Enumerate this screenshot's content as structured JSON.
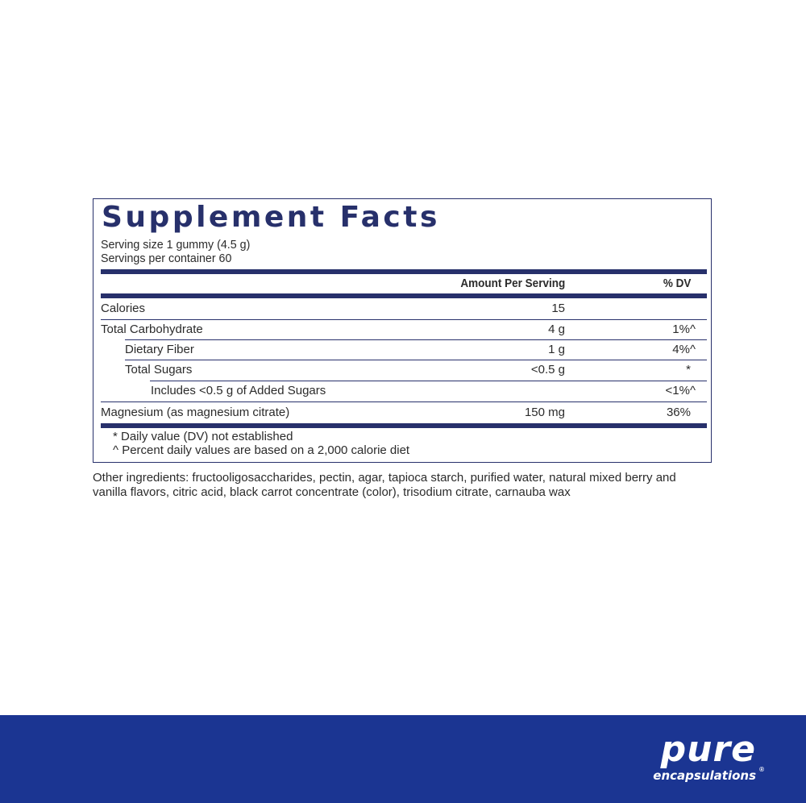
{
  "title": "Supplement Facts",
  "serving_size": "Serving size  1 gummy (4.5 g)",
  "servings_per_container": "Servings per container  60",
  "header": {
    "amount": "Amount Per Serving",
    "dv": "% DV"
  },
  "rows": [
    {
      "name": "Calories",
      "amount": "15",
      "dv": ""
    },
    {
      "name": "Total Carbohydrate",
      "amount": "4 g",
      "dv": "1%^"
    },
    {
      "name": "Dietary Fiber",
      "amount": "1 g",
      "dv": "4%^"
    },
    {
      "name": "Total Sugars",
      "amount": "<0.5 g",
      "dv": "*"
    },
    {
      "name": "Includes <0.5 g of Added Sugars",
      "amount": "",
      "dv": "<1%^"
    },
    {
      "name": "Magnesium (as magnesium citrate)",
      "amount": "150 mg",
      "dv": "36%"
    }
  ],
  "footnotes": [
    "* Daily value (DV) not established",
    "^ Percent daily values are based on a 2,000 calorie diet"
  ],
  "other_ingredients": "Other ingredients: fructooligosaccharides, pectin, agar, tapioca starch, purified water, natural mixed berry and vanilla flavors, citric acid, black carrot concentrate (color), trisodium citrate, carnauba wax",
  "brand": {
    "name": "pure",
    "tagline": "encapsulations",
    "registered": "®"
  },
  "colors": {
    "navy": "#27306b",
    "banner": "#1b3592"
  }
}
